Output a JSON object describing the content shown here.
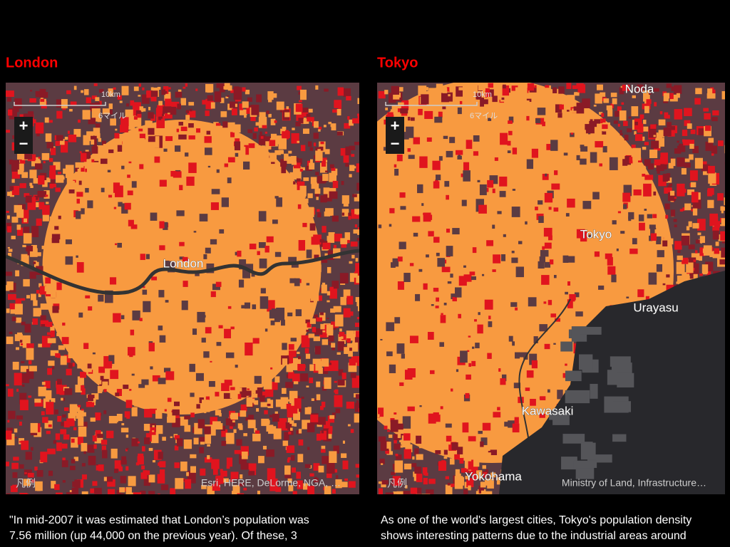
{
  "panels": [
    {
      "title": "London",
      "scale_km": "10km",
      "scale_mi": "6マイル",
      "zoom_in": "+",
      "zoom_out": "−",
      "legend": "凡例",
      "attribution": "Esri, HERE, DeLorme, NGA, …",
      "labels": [
        "London"
      ],
      "caption": [
        "\"In mid-2007 it was estimated that London’s population was",
        "7.56 million (up 44,000 on the previous year). Of these, 3"
      ]
    },
    {
      "title": "Tokyo",
      "scale_km": "10km",
      "scale_mi": "6マイル",
      "zoom_in": "+",
      "zoom_out": "−",
      "legend": "凡例",
      "attribution": "Ministry of Land, Infrastructure…",
      "labels": [
        "Noda",
        "Tokyo",
        "Urayasu",
        "Kawasaki",
        "Yokohama"
      ],
      "caption": [
        "As one of the world's largest cities, Tokyo's population density",
        "shows interesting patterns due to the industrial areas around"
      ]
    }
  ]
}
